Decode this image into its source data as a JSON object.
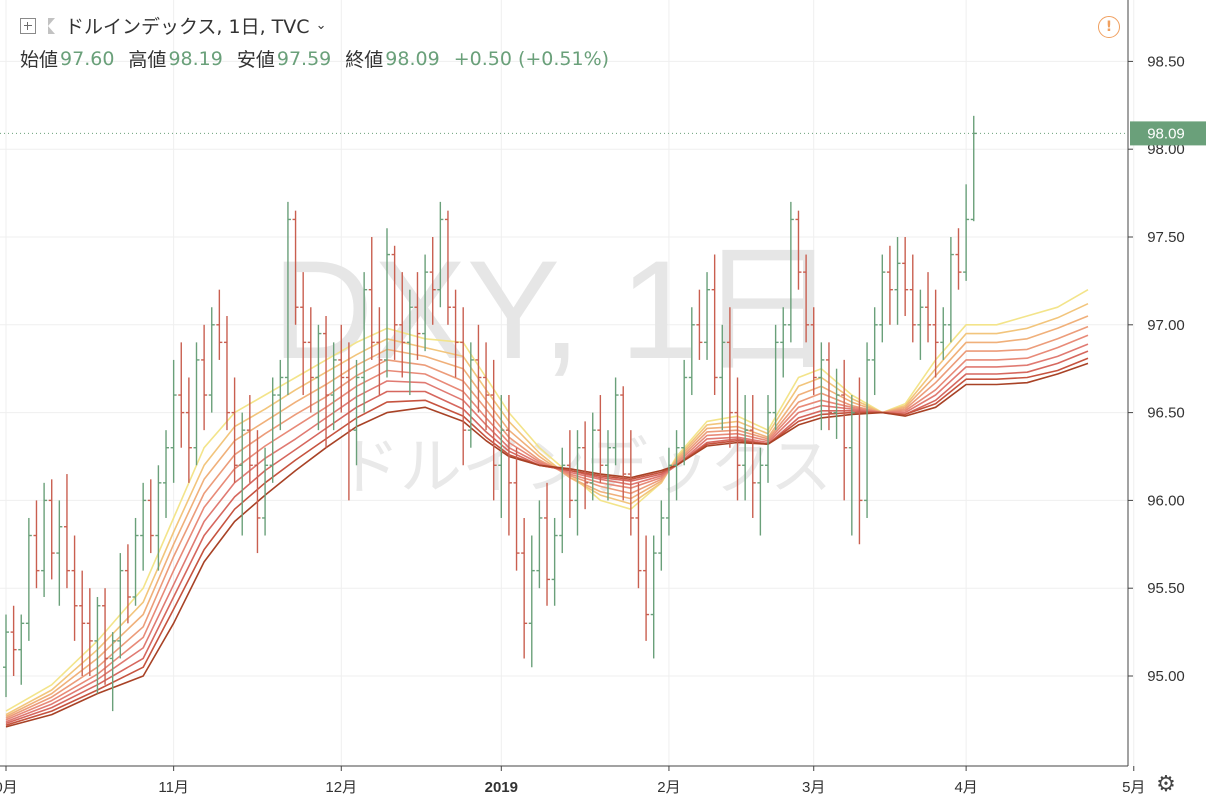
{
  "header": {
    "symbol_title": "ドルインデックス, 1日, TVC",
    "open_label": "始値",
    "open_value": "97.60",
    "high_label": "高値",
    "high_value": "98.19",
    "low_label": "安値",
    "low_value": "97.59",
    "close_label": "終値",
    "close_value": "98.09",
    "change": "+0.50 (+0.51%)"
  },
  "watermark": {
    "symbol": "DXY, 1日",
    "name": "ドルインデックス"
  },
  "colors": {
    "up": "#6aa07a",
    "down": "#c95f50",
    "last_price_badge": "#6aa07a",
    "ribbon": [
      "#f3e48a",
      "#f2c57c",
      "#f0b07a",
      "#ec9c7a",
      "#e88a78",
      "#e07a72",
      "#d6675e",
      "#c6533f",
      "#a84226"
    ]
  },
  "icons": {
    "expand": "plus-square-icon",
    "flag": "flag-icon",
    "alert": "exclamation-circle-icon",
    "settings": "gear-icon"
  },
  "chart_data": {
    "type": "ohlc",
    "y_ticks": [
      95.0,
      95.5,
      96.0,
      96.5,
      97.0,
      97.5,
      98.0,
      98.5
    ],
    "y_tick_labels": [
      "95.00",
      "95.50",
      "96.00",
      "96.50",
      "97.00",
      "97.50",
      "98.00",
      "98.50"
    ],
    "ylim": [
      94.5,
      99.0
    ],
    "last_price": "98.09",
    "x_labels": [
      "0月",
      "11月",
      "12月",
      "2019",
      "2月",
      "3月",
      "4月",
      "5月"
    ],
    "x_label_positions": [
      0,
      22,
      44,
      65,
      87,
      106,
      126,
      148
    ],
    "grid": true,
    "candles": [
      [
        95.05,
        95.35,
        94.88,
        95.25
      ],
      [
        95.25,
        95.4,
        95.0,
        95.15
      ],
      [
        95.15,
        95.35,
        94.95,
        95.3
      ],
      [
        95.3,
        95.9,
        95.2,
        95.8
      ],
      [
        95.8,
        96.0,
        95.5,
        95.6
      ],
      [
        95.6,
        96.1,
        95.45,
        96.0
      ],
      [
        96.0,
        96.12,
        95.55,
        95.7
      ],
      [
        95.7,
        96.0,
        95.4,
        95.85
      ],
      [
        95.85,
        96.15,
        95.5,
        95.6
      ],
      [
        95.6,
        95.8,
        95.2,
        95.4
      ],
      [
        95.4,
        95.6,
        95.0,
        95.3
      ],
      [
        95.3,
        95.5,
        95.0,
        95.2
      ],
      [
        95.2,
        95.45,
        94.9,
        95.4
      ],
      [
        95.4,
        95.5,
        94.95,
        95.1
      ],
      [
        95.1,
        95.25,
        94.8,
        95.2
      ],
      [
        95.2,
        95.7,
        95.1,
        95.6
      ],
      [
        95.6,
        95.75,
        95.3,
        95.45
      ],
      [
        95.45,
        95.9,
        95.4,
        95.8
      ],
      [
        95.8,
        96.1,
        95.6,
        96.0
      ],
      [
        96.0,
        96.12,
        95.7,
        95.8
      ],
      [
        95.8,
        96.2,
        95.6,
        96.1
      ],
      [
        96.1,
        96.4,
        95.9,
        96.3
      ],
      [
        96.3,
        96.8,
        96.1,
        96.6
      ],
      [
        96.6,
        96.9,
        96.3,
        96.5
      ],
      [
        96.5,
        96.7,
        96.1,
        96.3
      ],
      [
        96.3,
        96.9,
        96.2,
        96.8
      ],
      [
        96.8,
        97.0,
        96.4,
        96.6
      ],
      [
        96.6,
        97.1,
        96.5,
        97.0
      ],
      [
        97.0,
        97.2,
        96.8,
        96.9
      ],
      [
        96.9,
        97.05,
        96.4,
        96.5
      ],
      [
        96.5,
        96.7,
        96.1,
        96.2
      ],
      [
        96.2,
        96.5,
        95.8,
        96.4
      ],
      [
        96.4,
        96.6,
        96.1,
        96.2
      ],
      [
        96.2,
        96.4,
        95.7,
        95.9
      ],
      [
        95.9,
        96.3,
        95.8,
        96.2
      ],
      [
        96.2,
        96.7,
        96.1,
        96.6
      ],
      [
        96.6,
        96.8,
        96.4,
        96.7
      ],
      [
        96.7,
        97.7,
        96.6,
        97.6
      ],
      [
        97.6,
        97.65,
        97.0,
        97.1
      ],
      [
        97.1,
        97.3,
        96.6,
        96.9
      ],
      [
        96.9,
        97.1,
        96.5,
        96.7
      ],
      [
        96.7,
        97.0,
        96.4,
        96.95
      ],
      [
        96.95,
        97.05,
        96.3,
        96.6
      ],
      [
        96.6,
        96.9,
        96.4,
        96.8
      ],
      [
        96.8,
        97.0,
        96.5,
        96.7
      ],
      [
        96.7,
        96.9,
        96.0,
        96.4
      ],
      [
        96.4,
        96.8,
        96.2,
        96.7
      ],
      [
        96.7,
        97.3,
        96.5,
        97.2
      ],
      [
        97.2,
        97.5,
        96.8,
        96.9
      ],
      [
        96.9,
        97.1,
        96.6,
        96.8
      ],
      [
        96.8,
        97.55,
        96.7,
        97.4
      ],
      [
        97.4,
        97.45,
        96.8,
        97.0
      ],
      [
        97.0,
        97.3,
        96.7,
        96.9
      ],
      [
        96.9,
        97.2,
        96.6,
        97.1
      ],
      [
        97.1,
        97.3,
        96.8,
        96.95
      ],
      [
        96.95,
        97.4,
        96.85,
        97.3
      ],
      [
        97.3,
        97.5,
        97.0,
        97.2
      ],
      [
        97.2,
        97.7,
        97.1,
        97.6
      ],
      [
        97.6,
        97.65,
        97.0,
        97.1
      ],
      [
        97.1,
        97.2,
        96.7,
        96.9
      ],
      [
        96.9,
        97.1,
        96.2,
        96.4
      ],
      [
        96.4,
        96.9,
        96.3,
        96.8
      ],
      [
        96.8,
        97.0,
        96.5,
        96.7
      ],
      [
        96.7,
        96.9,
        96.4,
        96.6
      ],
      [
        96.6,
        96.8,
        96.0,
        96.2
      ],
      [
        96.2,
        96.6,
        95.9,
        96.4
      ],
      [
        96.4,
        96.6,
        95.8,
        96.1
      ],
      [
        96.1,
        96.3,
        95.6,
        95.7
      ],
      [
        95.7,
        95.9,
        95.1,
        95.3
      ],
      [
        95.3,
        95.8,
        95.05,
        95.6
      ],
      [
        95.6,
        96.0,
        95.5,
        95.9
      ],
      [
        95.9,
        96.1,
        95.4,
        95.55
      ],
      [
        95.55,
        95.9,
        95.4,
        95.8
      ],
      [
        95.8,
        96.3,
        95.7,
        96.2
      ],
      [
        96.2,
        96.4,
        95.9,
        96.0
      ],
      [
        96.0,
        96.4,
        95.8,
        96.3
      ],
      [
        96.3,
        96.45,
        95.95,
        96.1
      ],
      [
        96.1,
        96.5,
        96.0,
        96.4
      ],
      [
        96.4,
        96.6,
        96.1,
        96.2
      ],
      [
        96.2,
        96.4,
        96.0,
        96.3
      ],
      [
        96.3,
        96.7,
        96.2,
        96.6
      ],
      [
        96.6,
        96.65,
        96.0,
        96.15
      ],
      [
        96.15,
        96.4,
        95.8,
        95.9
      ],
      [
        95.9,
        96.1,
        95.5,
        95.6
      ],
      [
        95.6,
        95.8,
        95.2,
        95.35
      ],
      [
        95.35,
        95.8,
        95.1,
        95.7
      ],
      [
        95.7,
        96.0,
        95.6,
        95.9
      ],
      [
        95.9,
        96.3,
        95.8,
        96.2
      ],
      [
        96.2,
        96.4,
        96.0,
        96.3
      ],
      [
        96.3,
        96.8,
        96.2,
        96.7
      ],
      [
        96.7,
        97.1,
        96.6,
        97.0
      ],
      [
        97.0,
        97.2,
        96.8,
        96.9
      ],
      [
        96.9,
        97.3,
        96.8,
        97.2
      ],
      [
        97.2,
        97.4,
        96.6,
        96.7
      ],
      [
        96.7,
        97.0,
        96.4,
        96.9
      ],
      [
        96.9,
        97.1,
        96.3,
        96.5
      ],
      [
        96.5,
        96.7,
        96.0,
        96.2
      ],
      [
        96.2,
        96.6,
        96.0,
        96.4
      ],
      [
        96.4,
        96.6,
        95.9,
        96.1
      ],
      [
        96.1,
        96.3,
        95.8,
        96.2
      ],
      [
        96.2,
        96.6,
        96.1,
        96.5
      ],
      [
        96.5,
        97.0,
        96.4,
        96.9
      ],
      [
        96.9,
        97.1,
        96.7,
        97.0
      ],
      [
        97.0,
        97.7,
        96.9,
        97.6
      ],
      [
        97.6,
        97.65,
        97.2,
        97.3
      ],
      [
        97.3,
        97.4,
        96.9,
        97.0
      ],
      [
        97.0,
        97.1,
        96.6,
        96.7
      ],
      [
        96.7,
        96.9,
        96.4,
        96.8
      ],
      [
        96.8,
        96.9,
        96.4,
        96.5
      ],
      [
        96.5,
        96.75,
        96.35,
        96.6
      ],
      [
        96.6,
        96.8,
        96.0,
        96.3
      ],
      [
        96.3,
        96.6,
        95.8,
        96.5
      ],
      [
        96.5,
        96.7,
        95.75,
        96.0
      ],
      [
        96.0,
        96.9,
        95.9,
        96.8
      ],
      [
        96.8,
        97.1,
        96.6,
        97.0
      ],
      [
        97.0,
        97.4,
        96.9,
        97.3
      ],
      [
        97.3,
        97.45,
        97.0,
        97.2
      ],
      [
        97.2,
        97.5,
        97.0,
        97.35
      ],
      [
        97.35,
        97.5,
        97.05,
        97.2
      ],
      [
        97.2,
        97.4,
        96.9,
        97.0
      ],
      [
        97.0,
        97.2,
        96.8,
        97.1
      ],
      [
        97.1,
        97.3,
        96.9,
        97.0
      ],
      [
        97.0,
        97.2,
        96.7,
        96.9
      ],
      [
        96.9,
        97.1,
        96.8,
        97.0
      ],
      [
        97.0,
        97.5,
        96.9,
        97.4
      ],
      [
        97.4,
        97.55,
        97.2,
        97.3
      ],
      [
        97.3,
        97.8,
        97.25,
        97.6
      ],
      [
        97.6,
        98.19,
        97.59,
        98.09
      ]
    ],
    "ma_ribbon": {
      "anchor_x": [
        0,
        6,
        12,
        18,
        22,
        26,
        30,
        34,
        38,
        42,
        46,
        50,
        55,
        60,
        63,
        66,
        70,
        74,
        78,
        82,
        86,
        88,
        92,
        96,
        100,
        104,
        107,
        111,
        115,
        118,
        122,
        126,
        130,
        134,
        138,
        142
      ],
      "lines": [
        [
          94.8,
          94.95,
          95.2,
          95.5,
          95.9,
          96.3,
          96.5,
          96.6,
          96.7,
          96.8,
          96.9,
          96.98,
          96.92,
          96.9,
          96.7,
          96.5,
          96.3,
          96.15,
          96.0,
          95.95,
          96.1,
          96.25,
          96.45,
          96.48,
          96.4,
          96.7,
          96.75,
          96.6,
          96.5,
          96.55,
          96.8,
          97.0,
          97.0,
          97.05,
          97.1,
          97.2
        ],
        [
          94.78,
          94.92,
          95.15,
          95.42,
          95.82,
          96.2,
          96.42,
          96.52,
          96.63,
          96.73,
          96.83,
          96.92,
          96.87,
          96.82,
          96.63,
          96.45,
          96.27,
          96.13,
          96.03,
          95.98,
          96.1,
          96.24,
          96.43,
          96.45,
          96.38,
          96.65,
          96.7,
          96.58,
          96.5,
          96.54,
          96.75,
          96.95,
          96.95,
          96.98,
          97.04,
          97.12
        ],
        [
          94.77,
          94.9,
          95.1,
          95.35,
          95.75,
          96.12,
          96.34,
          96.45,
          96.56,
          96.66,
          96.77,
          96.86,
          96.82,
          96.75,
          96.57,
          96.4,
          96.25,
          96.13,
          96.05,
          96.01,
          96.11,
          96.23,
          96.41,
          96.42,
          96.36,
          96.6,
          96.65,
          96.56,
          96.5,
          96.53,
          96.71,
          96.9,
          96.9,
          96.92,
          96.98,
          97.05
        ],
        [
          94.76,
          94.88,
          95.05,
          95.28,
          95.68,
          96.04,
          96.26,
          96.38,
          96.49,
          96.59,
          96.71,
          96.8,
          96.77,
          96.68,
          96.52,
          96.36,
          96.23,
          96.14,
          96.08,
          96.04,
          96.12,
          96.22,
          96.39,
          96.4,
          96.35,
          96.56,
          96.61,
          96.54,
          96.5,
          96.52,
          96.67,
          96.85,
          96.85,
          96.86,
          96.92,
          96.99
        ],
        [
          94.75,
          94.86,
          95.01,
          95.22,
          95.6,
          95.96,
          96.18,
          96.31,
          96.42,
          96.53,
          96.65,
          96.74,
          96.72,
          96.62,
          96.47,
          96.33,
          96.22,
          96.15,
          96.1,
          96.07,
          96.13,
          96.21,
          96.37,
          96.38,
          96.34,
          96.53,
          96.57,
          96.53,
          96.5,
          96.51,
          96.63,
          96.8,
          96.8,
          96.81,
          96.87,
          96.94
        ],
        [
          94.74,
          94.84,
          94.98,
          95.16,
          95.52,
          95.88,
          96.1,
          96.24,
          96.35,
          96.47,
          96.59,
          96.68,
          96.67,
          96.57,
          96.43,
          96.3,
          96.21,
          96.16,
          96.12,
          96.09,
          96.14,
          96.2,
          96.35,
          96.36,
          96.33,
          96.5,
          96.54,
          96.52,
          96.5,
          96.5,
          96.6,
          96.76,
          96.76,
          96.77,
          96.82,
          96.89
        ],
        [
          94.73,
          94.82,
          94.95,
          95.1,
          95.45,
          95.8,
          96.02,
          96.17,
          96.29,
          96.41,
          96.53,
          96.62,
          96.62,
          96.52,
          96.39,
          96.28,
          96.2,
          96.17,
          96.13,
          96.11,
          96.15,
          96.2,
          96.33,
          96.35,
          96.32,
          96.47,
          96.51,
          96.51,
          96.5,
          96.49,
          96.57,
          96.72,
          96.72,
          96.73,
          96.78,
          96.85
        ],
        [
          94.72,
          94.8,
          94.92,
          95.05,
          95.38,
          95.72,
          95.95,
          96.1,
          96.23,
          96.35,
          96.47,
          96.56,
          96.57,
          96.48,
          96.36,
          96.26,
          96.2,
          96.17,
          96.14,
          96.12,
          96.16,
          96.2,
          96.32,
          96.34,
          96.32,
          96.45,
          96.49,
          96.5,
          96.5,
          96.49,
          96.55,
          96.69,
          96.69,
          96.7,
          96.74,
          96.81
        ],
        [
          94.71,
          94.78,
          94.9,
          95.0,
          95.3,
          95.65,
          95.88,
          96.03,
          96.17,
          96.3,
          96.42,
          96.5,
          96.53,
          96.45,
          96.34,
          96.25,
          96.2,
          96.18,
          96.15,
          96.13,
          96.17,
          96.2,
          96.31,
          96.33,
          96.32,
          96.43,
          96.47,
          96.49,
          96.5,
          96.48,
          96.53,
          96.66,
          96.66,
          96.67,
          96.72,
          96.78
        ]
      ]
    }
  }
}
